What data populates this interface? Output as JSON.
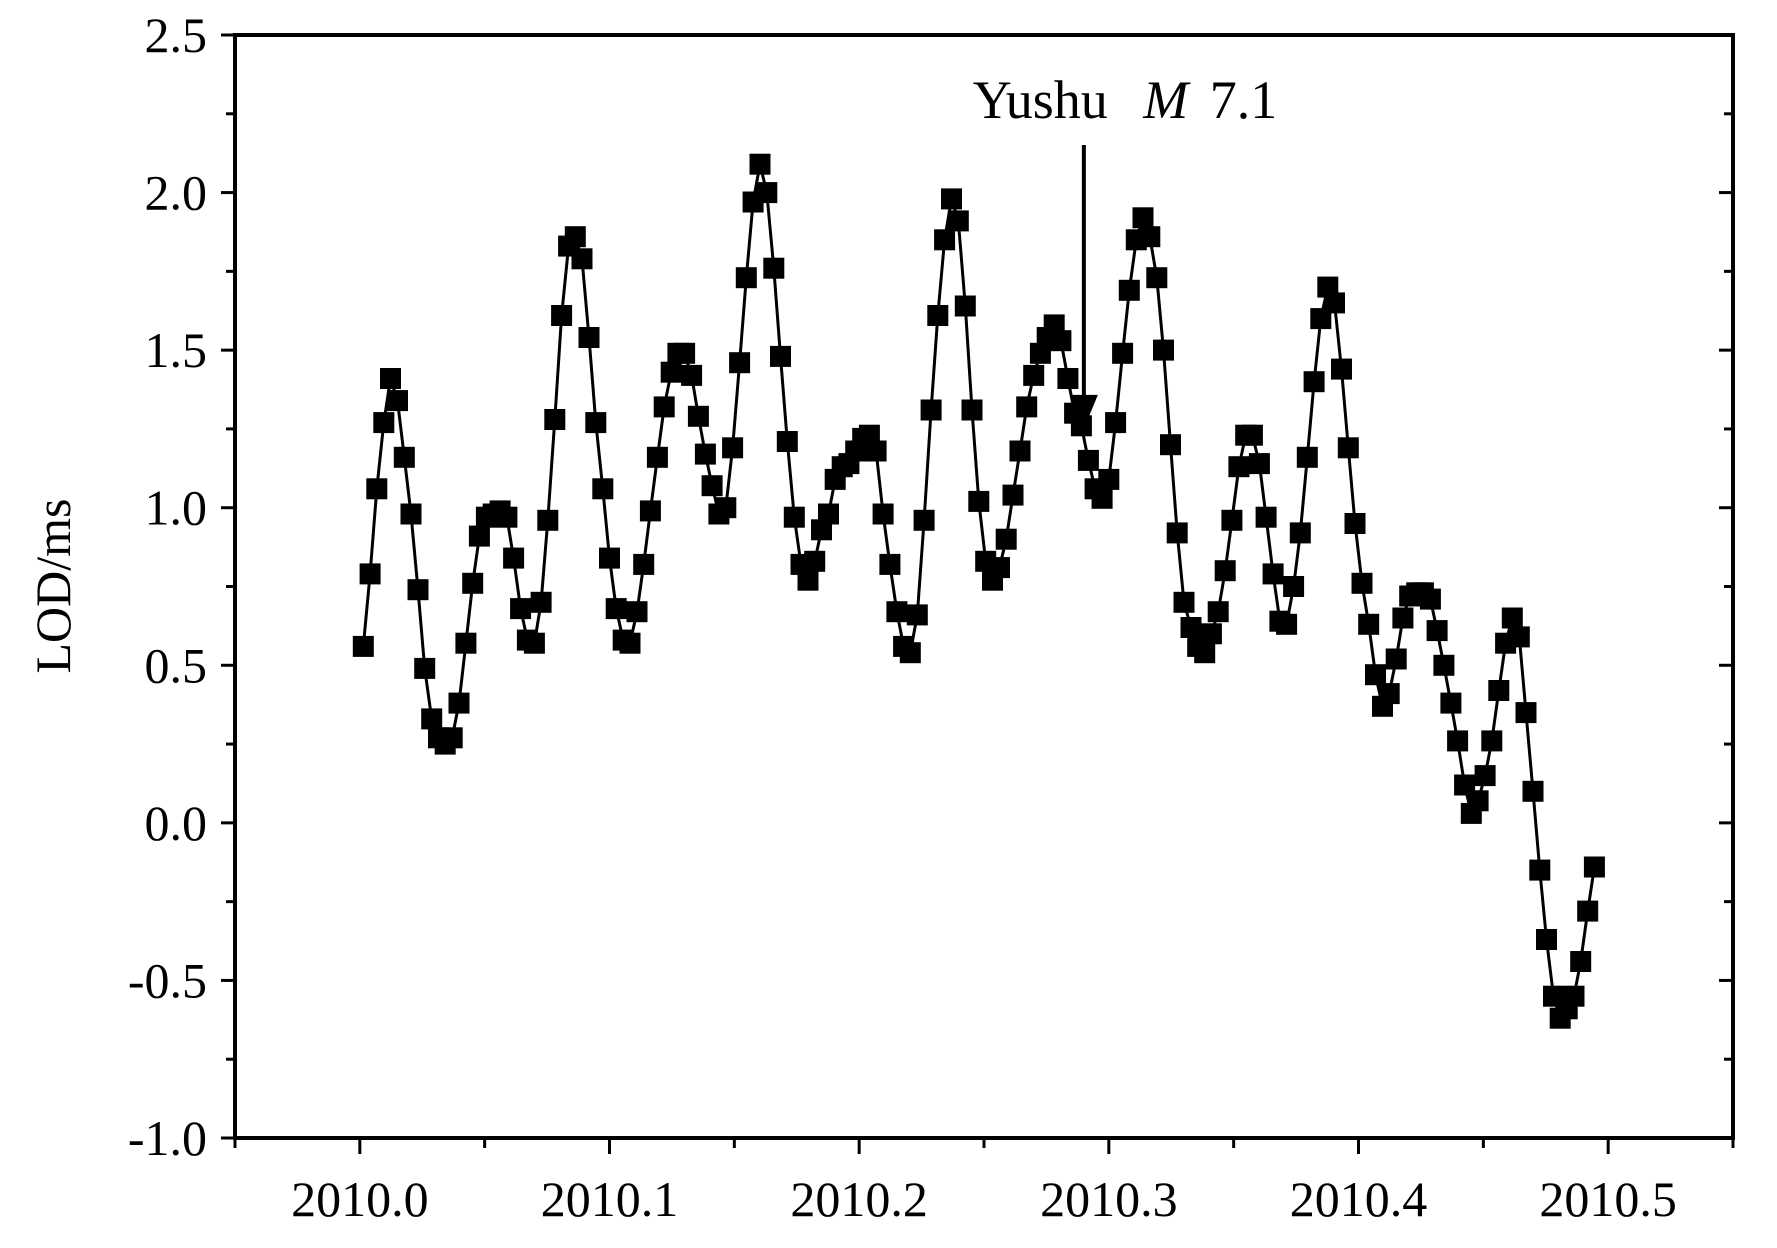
{
  "chart_data": {
    "type": "scatter",
    "title": "",
    "xlabel": "",
    "ylabel": "LOD/ms",
    "xlim": [
      2009.95,
      2010.55
    ],
    "ylim": [
      -1.0,
      2.5
    ],
    "x_ticks": [
      "2010.0",
      "2010.1",
      "2010.2",
      "2010.3",
      "2010.4",
      "2010.5"
    ],
    "y_ticks": [
      "2.5",
      "2.0",
      "1.5",
      "1.0",
      "0.5",
      "0.0",
      "-0.5",
      "-1.0"
    ],
    "grid": false,
    "legend": "none",
    "marker": "square",
    "line": "solid",
    "color": "#000000",
    "annotation": {
      "text_main": "Yushu",
      "text_italic": "M",
      "text_value": "7.1",
      "x": 2010.29,
      "y": 1.25
    },
    "series": [
      {
        "x": [
          2010.0014,
          2010.0041,
          2010.0068,
          2010.0096,
          2010.0123,
          2010.0151,
          2010.0178,
          2010.0205,
          2010.0233,
          2010.026,
          2010.0288,
          2010.0315,
          2010.0342,
          2010.037,
          2010.0397,
          2010.0425,
          2010.0452,
          2010.0479,
          2010.0507,
          2010.0534,
          2010.0562,
          2010.0589,
          2010.0616,
          2010.0644,
          2010.0671,
          2010.0699,
          2010.0726,
          2010.0753,
          2010.0781,
          2010.0808,
          2010.0836,
          2010.0863,
          2010.089,
          2010.0918,
          2010.0945,
          2010.0973,
          2010.1,
          2010.1027,
          2010.1055,
          2010.1082,
          2010.111,
          2010.1137,
          2010.1164,
          2010.1192,
          2010.1219,
          2010.1247,
          2010.1274,
          2010.1301,
          2010.1329,
          2010.1356,
          2010.1384,
          2010.1411,
          2010.1438,
          2010.1466,
          2010.1493,
          2010.1521,
          2010.1548,
          2010.1575,
          2010.1603,
          2010.163,
          2010.1658,
          2010.1685,
          2010.1712,
          2010.174,
          2010.1767,
          2010.1795,
          2010.1822,
          2010.1849,
          2010.1877,
          2010.1904,
          2010.1932,
          2010.1959,
          2010.1986,
          2010.2014,
          2010.2041,
          2010.2068,
          2010.2096,
          2010.2123,
          2010.2151,
          2010.2178,
          2010.2205,
          2010.2233,
          2010.226,
          2010.2288,
          2010.2315,
          2010.2342,
          2010.237,
          2010.2397,
          2010.2425,
          2010.2452,
          2010.2479,
          2010.2507,
          2010.2534,
          2010.2562,
          2010.2589,
          2010.2616,
          2010.2644,
          2010.2671,
          2010.2699,
          2010.2726,
          2010.2753,
          2010.2781,
          2010.2808,
          2010.2836,
          2010.2863,
          2010.289,
          2010.2918,
          2010.2945,
          2010.2973,
          2010.3,
          2010.3027,
          2010.3055,
          2010.3082,
          2010.311,
          2010.3137,
          2010.3164,
          2010.3192,
          2010.3219,
          2010.3247,
          2010.3274,
          2010.3301,
          2010.3329,
          2010.3356,
          2010.3384,
          2010.3411,
          2010.3438,
          2010.3466,
          2010.3493,
          2010.3521,
          2010.3548,
          2010.3575,
          2010.3603,
          2010.363,
          2010.3658,
          2010.3685,
          2010.3712,
          2010.374,
          2010.3767,
          2010.3795,
          2010.3822,
          2010.3849,
          2010.3877,
          2010.3904,
          2010.3932,
          2010.3959,
          2010.3986,
          2010.4014,
          2010.4041,
          2010.4068,
          2010.4096,
          2010.4123,
          2010.4151,
          2010.4178,
          2010.4205,
          2010.4233,
          2010.426,
          2010.4288,
          2010.4315,
          2010.4342,
          2010.437,
          2010.4397,
          2010.4425,
          2010.4452,
          2010.4479,
          2010.4507,
          2010.4534,
          2010.4562,
          2010.4589,
          2010.4616,
          2010.4644,
          2010.4671,
          2010.4699,
          2010.4726,
          2010.4753,
          2010.4781,
          2010.4808,
          2010.4836,
          2010.4863,
          2010.489,
          2010.4918,
          2010.4945
        ],
        "y": [
          0.56,
          0.79,
          1.06,
          1.27,
          1.41,
          1.34,
          1.16,
          0.98,
          0.74,
          0.49,
          0.33,
          0.27,
          0.25,
          0.27,
          0.38,
          0.57,
          0.76,
          0.91,
          0.97,
          0.98,
          0.99,
          0.97,
          0.84,
          0.68,
          0.58,
          0.57,
          0.7,
          0.96,
          1.28,
          1.61,
          1.83,
          1.86,
          1.79,
          1.54,
          1.27,
          1.06,
          0.84,
          0.68,
          0.58,
          0.57,
          0.67,
          0.82,
          0.99,
          1.16,
          1.32,
          1.43,
          1.49,
          1.49,
          1.42,
          1.29,
          1.17,
          1.07,
          0.98,
          1.0,
          1.19,
          1.46,
          1.73,
          1.97,
          2.09,
          2.0,
          1.76,
          1.48,
          1.21,
          0.97,
          0.82,
          0.77,
          0.83,
          0.93,
          0.98,
          1.09,
          1.13,
          1.14,
          1.18,
          1.22,
          1.23,
          1.18,
          0.98,
          0.82,
          0.67,
          0.56,
          0.54,
          0.66,
          0.96,
          1.31,
          1.61,
          1.85,
          1.98,
          1.91,
          1.64,
          1.31,
          1.02,
          0.83,
          0.77,
          0.81,
          0.9,
          1.04,
          1.18,
          1.32,
          1.42,
          1.49,
          1.54,
          1.58,
          1.53,
          1.41,
          1.3,
          1.26,
          1.15,
          1.06,
          1.03,
          1.09,
          1.27,
          1.49,
          1.69,
          1.85,
          1.92,
          1.86,
          1.73,
          1.5,
          1.2,
          0.92,
          0.7,
          0.62,
          0.56,
          0.54,
          0.6,
          0.67,
          0.8,
          0.96,
          1.13,
          1.23,
          1.23,
          1.14,
          0.97,
          0.79,
          0.64,
          0.63,
          0.75,
          0.92,
          1.16,
          1.4,
          1.6,
          1.7,
          1.65,
          1.44,
          1.19,
          0.95,
          0.76,
          0.63,
          0.47,
          0.37,
          0.41,
          0.52,
          0.65,
          0.72,
          0.73,
          0.73,
          0.71,
          0.61,
          0.5,
          0.38,
          0.26,
          0.12,
          0.03,
          0.07,
          0.15,
          0.26,
          0.42,
          0.57,
          0.65,
          0.59,
          0.35,
          0.1,
          -0.15,
          -0.37,
          -0.55,
          -0.62,
          -0.59,
          -0.55,
          -0.44,
          -0.28,
          -0.14
        ]
      }
    ]
  }
}
